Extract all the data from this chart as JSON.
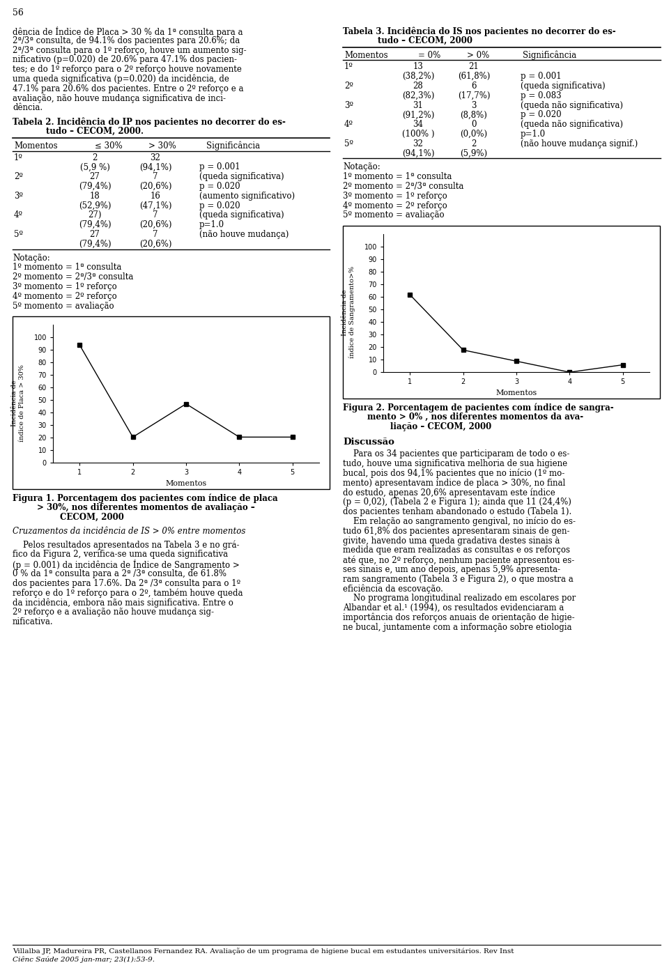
{
  "page_num": "56",
  "left_texts": [
    "dência de Índice de Placa > 30 % da 1ª consulta para a",
    "2ª/3ª consulta, de 94.1% dos pacientes para 20.6%; da",
    "2ª/3ª consulta para o 1º reforço, houve um aumento sig-",
    "nificativo (p=0.020) de 20.6% para 47.1% dos pacien-",
    "tes; e do 1º reforço para o 2º reforço houve novamente",
    "uma queda significativa (p=0.020) da incidência, de",
    "47.1% para 20.6% dos pacientes. Entre o 2º reforço e a",
    "avaliação, não houve mudança significativa de inci-",
    "dência."
  ],
  "fig1_x": [
    1,
    2,
    3,
    4,
    5
  ],
  "fig1_y": [
    94.1,
    20.6,
    47.1,
    20.6,
    20.6
  ],
  "fig2_x": [
    1,
    2,
    3,
    4,
    5
  ],
  "fig2_y": [
    61.8,
    17.7,
    8.8,
    0.0,
    5.9
  ],
  "notation": [
    "Notação:",
    "1º momento = 1ª consulta",
    "2º momento = 2ª/3ª consulta",
    "3º momento = 1º reforço",
    "4º momento = 2º reforço",
    "5º momento = avaliação"
  ],
  "left_texts2": [
    "    Pelos resultados apresentados na Tabela 3 e no grá-",
    "fico da Figura 2, verifica-se uma queda significativa",
    "(p = 0.001) da incidência de Índice de Sangramento >",
    "0 % da 1ª consulta para a 2ª /3ª consulta, de 61.8%",
    "dos pacientes para 17.6%. Da 2ª /3ª consulta para o 1º",
    "reforço e do 1º reforço para o 2º, também houve queda",
    "da incidência, embora não mais significativa. Entre o",
    "2º reforço e a avaliação não houve mudança sig-",
    "nificativa."
  ],
  "right_discuss": [
    "    Para os 34 pacientes que participaram de todo o es-",
    "tudo, houve uma significativa melhoria de sua higiene",
    "bucal, pois dos 94,1% pacientes que no início (1º mo-",
    "mento) apresentavam índice de placa > 30%, no final",
    "do estudo, apenas 20,6% apresentavam este índice",
    "(p = 0,02), (Tabela 2 e Figura 1); ainda que 11 (24,4%)",
    "dos pacientes tenham abandonado o estudo (Tabela 1).",
    "    Em relação ao sangramento gengival, no início do es-",
    "tudo 61,8% dos pacientes apresentaram sinais de gen-",
    "givite, havendo uma queda gradativa destes sinais à",
    "medida que eram realizadas as consultas e os reforços",
    "até que, no 2º reforço, nenhum paciente apresentou es-",
    "ses sinais e, um ano depois, apenas 5,9% apresenta-",
    "ram sangramento (Tabela 3 e Figura 2), o que mostra a",
    "eficiência da escovação.",
    "    No programa longitudinal realizado em escolares por",
    "Albandar et al.¹ (1994), os resultados evidenciaram a",
    "importância dos reforços anuais de orientação de higie-",
    "ne bucal, juntamente com a informação sobre etiologia"
  ]
}
